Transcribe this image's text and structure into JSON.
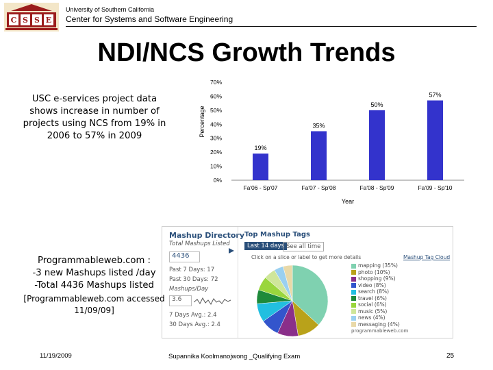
{
  "header": {
    "logo_text": "USC CSSE",
    "university": "University of Southern California",
    "center": "Center for Systems and Software Engineering"
  },
  "title": "NDI/NCS Growth Trends",
  "description": "USC e-services project data shows increase in number of projects using NCS from 19% in 2006 to 57% in 2009",
  "chart_data": {
    "type": "bar",
    "categories": [
      "Fa'06 - Sp'07",
      "Fa'07 - Sp'08",
      "Fa'08 - Sp'09",
      "Fa'09 - Sp'10"
    ],
    "values": [
      19,
      35,
      50,
      57
    ],
    "value_labels": [
      "19%",
      "35%",
      "50%",
      "57%"
    ],
    "ylim": [
      0,
      70
    ],
    "yticks": [
      "0%",
      "10%",
      "20%",
      "30%",
      "40%",
      "50%",
      "60%",
      "70%"
    ],
    "xlabel": "Year",
    "ylabel": "Percentage",
    "bar_color": "#3333cc",
    "grid": false
  },
  "mashup": {
    "directory_title": "Mashup Directory",
    "total_label": "Total Mashups Listed",
    "total_value": "4436",
    "past7": "Past 7 Days: 17",
    "past30": "Past 30 Days: 72",
    "per_day_label": "Mashups/Day",
    "per_day_value": "3.6",
    "avg7": "7 Days Avg.: 2.4",
    "avg30": "30 Days Avg.: 2.4",
    "tags_title": "Top Mashup Tags",
    "tab1": "Last 14 days",
    "tab2": "See all time",
    "instruction": "Click on a slice or label to get more details",
    "cloud_link": "Mashup Tag Cloud",
    "source": "programmableweb.com",
    "slices": [
      {
        "label": "mapping (35%)",
        "value": 35,
        "color": "#7fd1b0"
      },
      {
        "label": "photo (10%)",
        "value": 10,
        "color": "#b9a21a"
      },
      {
        "label": "shopping (9%)",
        "value": 9,
        "color": "#8a2f8a"
      },
      {
        "label": "video (8%)",
        "value": 8,
        "color": "#3355cc"
      },
      {
        "label": "search (8%)",
        "value": 8,
        "color": "#22bfe0"
      },
      {
        "label": "travel (6%)",
        "value": 6,
        "color": "#1e8a3a"
      },
      {
        "label": "social (6%)",
        "value": 6,
        "color": "#9ad63d"
      },
      {
        "label": "music (5%)",
        "value": 5,
        "color": "#cfe69a"
      },
      {
        "label": "news (4%)",
        "value": 4,
        "color": "#9ad0f0"
      },
      {
        "label": "messaging (4%)",
        "value": 4,
        "color": "#e9d9a8"
      }
    ]
  },
  "left_text": {
    "line1": "Programmableweb.com :",
    "line2": "-3 new Mashups listed /day",
    "line3": "-Total 4436 Mashups listed",
    "line4": "[Programmableweb.com accessed 11/09/09]"
  },
  "footer": {
    "date": "11/19/2009",
    "author": "Supannika Koolmanojwong _Qualifying Exam",
    "page": "25"
  }
}
